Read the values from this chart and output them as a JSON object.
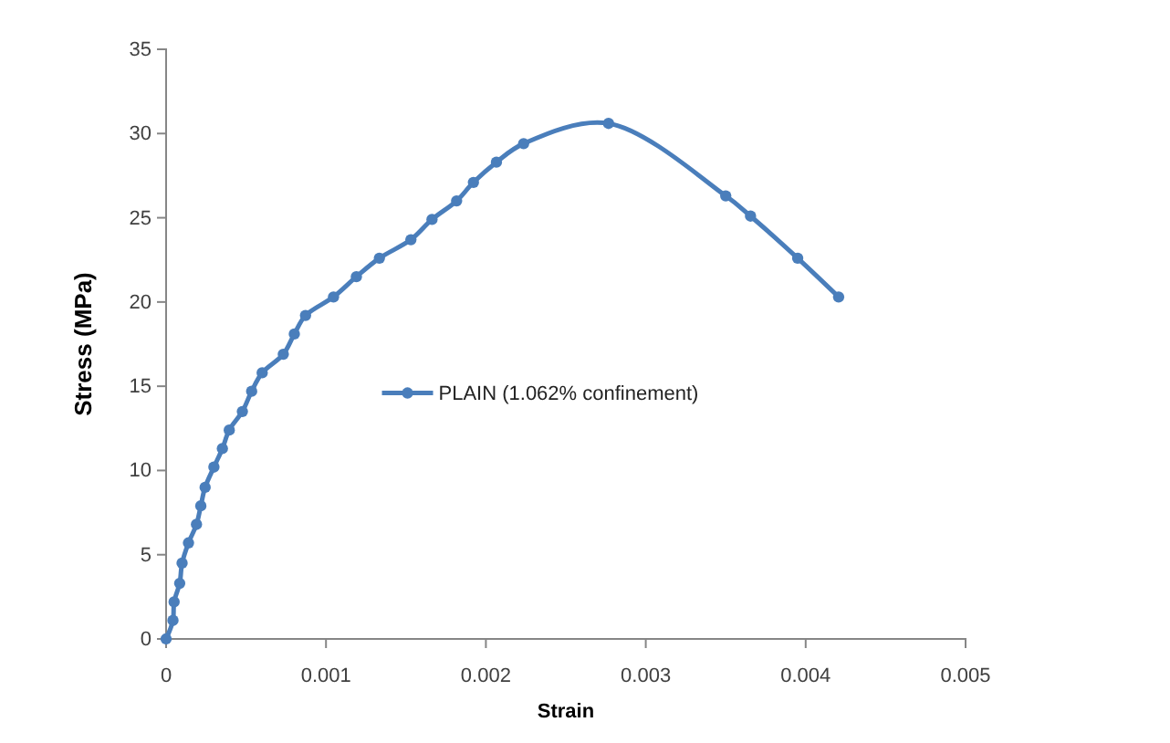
{
  "chart_data": {
    "type": "line",
    "xlabel": "Strain",
    "ylabel": "Stress (MPa)",
    "xlim": [
      0,
      0.005
    ],
    "xticks": [
      0,
      0.001,
      0.002,
      0.003,
      0.004,
      0.005
    ],
    "ylim": [
      0,
      35
    ],
    "yticks": [
      0,
      5,
      10,
      15,
      20,
      25,
      30,
      35
    ],
    "grid": false,
    "legend": "center",
    "marker": "circle",
    "line_style": "solid",
    "series": [
      {
        "name": "PLAIN (1.062% confinement)",
        "color": "#4a7ebb",
        "x": [
          0,
          4.3e-05,
          5e-05,
          8.5e-05,
          0.0001,
          0.00014,
          0.00019,
          0.000217,
          0.000244,
          0.000299,
          0.000352,
          0.000395,
          0.000477,
          0.000535,
          0.000601,
          0.000733,
          0.000802,
          0.000872,
          0.001047,
          0.00119,
          0.001334,
          0.001531,
          0.001663,
          0.001817,
          0.001922,
          0.002066,
          0.002236,
          0.002767,
          0.0035,
          0.003655,
          0.00395,
          0.004206
        ],
        "values": [
          0,
          1.1,
          2.2,
          3.3,
          4.5,
          5.7,
          6.8,
          7.9,
          9.0,
          10.2,
          11.3,
          12.4,
          13.5,
          14.7,
          15.8,
          16.9,
          18.1,
          19.2,
          20.3,
          21.5,
          22.6,
          23.7,
          24.9,
          26.0,
          27.1,
          28.3,
          29.4,
          30.6,
          26.3,
          25.1,
          22.6,
          20.3
        ]
      }
    ]
  }
}
